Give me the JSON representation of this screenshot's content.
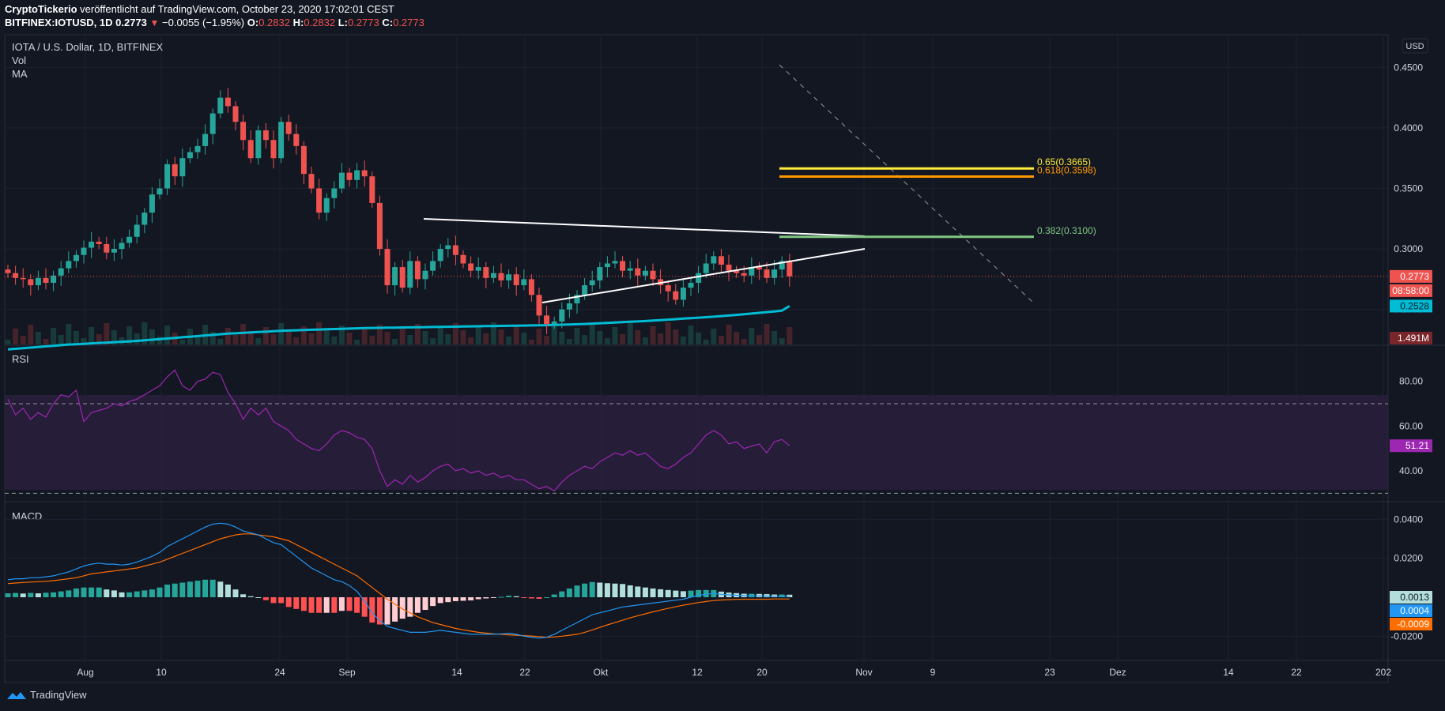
{
  "header": {
    "author": "CryptoTickerio",
    "published_text": "veröffentlicht auf TradingView.com, October 23, 2020 17:02:01 CEST",
    "symbol": "BITFINEX:IOTUSD, 1D",
    "last": "0.2773",
    "change": "−0.0055 (−1.95%)",
    "o_label": "O:",
    "o": "0.2832",
    "h_label": "H:",
    "h": "0.2832",
    "l_label": "L:",
    "l": "0.2773",
    "c_label": "C:",
    "c": "0.2773"
  },
  "legend": {
    "title": "IOTA / U.S. Dollar, 1D, BITFINEX",
    "vol": "Vol",
    "ma": "MA",
    "rsi": "RSI",
    "macd": "MACD"
  },
  "currency_button": "USD",
  "footer": {
    "brand": "TradingView"
  },
  "colors": {
    "bg": "#131722",
    "up": "#26a69a",
    "down": "#ef5350",
    "ma": "#00bcd4",
    "rsi": "#9c27b0",
    "macd": "#2196f3",
    "signal": "#ff6d00"
  },
  "chart_data": [
    {
      "type": "candlestick",
      "title": "IOTA / U.S. Dollar, 1D, BITFINEX",
      "x_ticks": [
        "Aug",
        "10",
        "24",
        "Sep",
        "14",
        "22",
        "Okt",
        "12",
        "20",
        "Nov",
        "9",
        "23",
        "Dez",
        "14",
        "22",
        "202"
      ],
      "y_ticks": [
        "0.4500",
        "0.4000",
        "0.3500",
        "0.3000",
        "0.2500"
      ],
      "ylim": [
        0.225,
        0.46
      ],
      "price_label": "0.2773",
      "countdown_label": "08:58:00",
      "ma_label": "0.2528",
      "volume_label": "1.491M",
      "fib_levels": [
        {
          "label": "0.65(0.3665)",
          "value": 0.3665,
          "color": "#ffeb3b"
        },
        {
          "label": "0.618(0.3598)",
          "value": 0.3598,
          "color": "#ff9800"
        },
        {
          "label": "0.382(0.3100)",
          "value": 0.31,
          "color": "#81c784"
        }
      ],
      "closes": [
        0.28,
        0.276,
        0.275,
        0.27,
        0.276,
        0.272,
        0.278,
        0.284,
        0.29,
        0.295,
        0.301,
        0.306,
        0.304,
        0.297,
        0.3,
        0.305,
        0.31,
        0.32,
        0.33,
        0.345,
        0.35,
        0.37,
        0.36,
        0.375,
        0.38,
        0.385,
        0.395,
        0.412,
        0.425,
        0.418,
        0.405,
        0.39,
        0.375,
        0.398,
        0.39,
        0.375,
        0.405,
        0.395,
        0.385,
        0.362,
        0.35,
        0.33,
        0.342,
        0.35,
        0.363,
        0.357,
        0.365,
        0.36,
        0.338,
        0.3,
        0.27,
        0.285,
        0.268,
        0.29,
        0.275,
        0.282,
        0.29,
        0.3,
        0.303,
        0.295,
        0.288,
        0.282,
        0.285,
        0.276,
        0.28,
        0.274,
        0.279,
        0.27,
        0.275,
        0.262,
        0.245,
        0.238,
        0.24,
        0.25,
        0.255,
        0.262,
        0.27,
        0.274,
        0.285,
        0.288,
        0.29,
        0.282,
        0.284,
        0.278,
        0.282,
        0.275,
        0.27,
        0.265,
        0.258,
        0.268,
        0.272,
        0.28,
        0.288,
        0.294,
        0.287,
        0.282,
        0.28,
        0.278,
        0.285,
        0.283,
        0.276,
        0.283,
        0.29,
        0.2773
      ],
      "ma": [
        0.217,
        0.2175,
        0.218,
        0.2185,
        0.219,
        0.2195,
        0.22,
        0.2205,
        0.221,
        0.2213,
        0.2216,
        0.222,
        0.2223,
        0.2226,
        0.223,
        0.2233,
        0.2236,
        0.224,
        0.2245,
        0.225,
        0.2255,
        0.226,
        0.2265,
        0.227,
        0.2275,
        0.228,
        0.2285,
        0.229,
        0.2295,
        0.23,
        0.2303,
        0.2306,
        0.231,
        0.2313,
        0.2316,
        0.232,
        0.2323,
        0.2326,
        0.2328,
        0.233,
        0.2332,
        0.2334,
        0.2336,
        0.2338,
        0.234,
        0.2342,
        0.2344,
        0.2346,
        0.2347,
        0.2348,
        0.2349,
        0.235,
        0.2351,
        0.2352,
        0.2353,
        0.2354,
        0.2355,
        0.2356,
        0.2357,
        0.2358,
        0.2359,
        0.236,
        0.2361,
        0.2362,
        0.2363,
        0.2364,
        0.2365,
        0.2366,
        0.2367,
        0.2368,
        0.2369,
        0.237,
        0.2372,
        0.2374,
        0.2376,
        0.2378,
        0.238,
        0.2383,
        0.2386,
        0.2389,
        0.2392,
        0.2395,
        0.2398,
        0.2401,
        0.2404,
        0.2408,
        0.2412,
        0.2416,
        0.242,
        0.2424,
        0.2428,
        0.2432,
        0.2436,
        0.244,
        0.2445,
        0.245,
        0.2455,
        0.246,
        0.2466,
        0.2472,
        0.2478,
        0.2484,
        0.249,
        0.2528
      ],
      "rsi": {
        "ticks": [
          "80.00",
          "60.00",
          "40.00"
        ],
        "ylim": [
          28,
          88
        ],
        "bands": [
          70,
          30
        ],
        "label": "51.21",
        "values": [
          72,
          65,
          68,
          63,
          66,
          64,
          70,
          74,
          73,
          76,
          62,
          66,
          67,
          68,
          70,
          69,
          71,
          72,
          74,
          76,
          78,
          82,
          85,
          78,
          76,
          80,
          81,
          84,
          83,
          75,
          70,
          63,
          68,
          65,
          68,
          62,
          60,
          58,
          54,
          52,
          50,
          49,
          52,
          56,
          58,
          57,
          55,
          54,
          50,
          40,
          33,
          36,
          34,
          38,
          35,
          37,
          40,
          42,
          43,
          40,
          41,
          39,
          40,
          38,
          39,
          37,
          38,
          36,
          36,
          34,
          32,
          33,
          31,
          35,
          38,
          40,
          42,
          41,
          44,
          46,
          48,
          47,
          49,
          47,
          48,
          45,
          42,
          41,
          43,
          46,
          48,
          52,
          56,
          58,
          56,
          52,
          53,
          50,
          51,
          52,
          48,
          53,
          54,
          51.21
        ]
      }
    },
    {
      "type": "macd",
      "title": "MACD",
      "y_ticks": [
        "0.0400",
        "0.0200",
        "-0.0200"
      ],
      "ylim": [
        -0.03,
        0.045
      ],
      "labels": {
        "hist": "0.0013",
        "macd": "0.0004",
        "signal": "-0.0009"
      },
      "macd": [
        0.009,
        0.0095,
        0.0095,
        0.01,
        0.01,
        0.0105,
        0.011,
        0.012,
        0.013,
        0.0145,
        0.016,
        0.017,
        0.0175,
        0.017,
        0.017,
        0.0165,
        0.017,
        0.018,
        0.0195,
        0.021,
        0.023,
        0.026,
        0.028,
        0.03,
        0.032,
        0.034,
        0.036,
        0.0375,
        0.038,
        0.0375,
        0.036,
        0.034,
        0.033,
        0.032,
        0.03,
        0.028,
        0.027,
        0.024,
        0.021,
        0.018,
        0.015,
        0.013,
        0.011,
        0.009,
        0.008,
        0.006,
        0.003,
        -0.002,
        -0.008,
        -0.012,
        -0.015,
        -0.016,
        -0.017,
        -0.018,
        -0.018,
        -0.018,
        -0.0175,
        -0.017,
        -0.0175,
        -0.018,
        -0.0185,
        -0.019,
        -0.019,
        -0.019,
        -0.019,
        -0.0188,
        -0.0185,
        -0.019,
        -0.02,
        -0.0205,
        -0.021,
        -0.0205,
        -0.019,
        -0.017,
        -0.015,
        -0.013,
        -0.011,
        -0.009,
        -0.008,
        -0.007,
        -0.006,
        -0.005,
        -0.0045,
        -0.004,
        -0.0035,
        -0.003,
        -0.0025,
        -0.002,
        -0.0015,
        -0.001,
        0.0,
        0.001,
        0.0015,
        0.002,
        0.0015,
        0.0012,
        0.001,
        0.0008,
        0.0008,
        0.0007,
        0.0006,
        0.0005,
        0.0005,
        0.0004
      ],
      "signal": [
        0.007,
        0.0073,
        0.0076,
        0.0078,
        0.008,
        0.0082,
        0.0085,
        0.009,
        0.0095,
        0.01,
        0.011,
        0.012,
        0.0125,
        0.013,
        0.0135,
        0.014,
        0.0145,
        0.015,
        0.016,
        0.017,
        0.018,
        0.0195,
        0.021,
        0.0225,
        0.024,
        0.0255,
        0.027,
        0.0285,
        0.03,
        0.031,
        0.032,
        0.0325,
        0.0325,
        0.032,
        0.0315,
        0.031,
        0.03,
        0.029,
        0.027,
        0.025,
        0.023,
        0.021,
        0.019,
        0.017,
        0.015,
        0.013,
        0.011,
        0.008,
        0.005,
        0.002,
        -0.001,
        -0.0035,
        -0.006,
        -0.008,
        -0.01,
        -0.0115,
        -0.013,
        -0.014,
        -0.015,
        -0.016,
        -0.0167,
        -0.0174,
        -0.018,
        -0.0184,
        -0.0188,
        -0.019,
        -0.0193,
        -0.0195,
        -0.0197,
        -0.0199,
        -0.0202,
        -0.0205,
        -0.0204,
        -0.02,
        -0.0195,
        -0.019,
        -0.018,
        -0.0168,
        -0.0155,
        -0.0142,
        -0.013,
        -0.0118,
        -0.0106,
        -0.0095,
        -0.0085,
        -0.0075,
        -0.0066,
        -0.0057,
        -0.0049,
        -0.0041,
        -0.0034,
        -0.0027,
        -0.0022,
        -0.0017,
        -0.0014,
        -0.0012,
        -0.0011,
        -0.001,
        -0.001,
        -0.001,
        -0.001,
        -0.0009,
        -0.0009,
        -0.0009
      ]
    }
  ]
}
